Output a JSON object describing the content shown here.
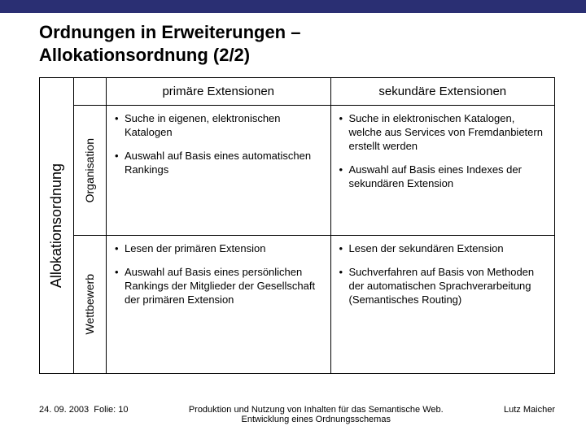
{
  "colors": {
    "accent_bar": "#2a2f73",
    "border": "#000000",
    "background": "#ffffff",
    "text": "#000000"
  },
  "title_line1": "Ordnungen in Erweiterungen –",
  "title_line2": "Allokationsordnung (2/2)",
  "outer_row_label": "Allokationsordnung",
  "col_headers": {
    "primary": "primäre Extensionen",
    "secondary": "sekundäre Extensionen"
  },
  "row_labels": {
    "r1": "Organisation",
    "r2": "Wettbewerb"
  },
  "cells": {
    "r1p": {
      "b1": "Suche in eigenen, elektronischen Katalogen",
      "b2": "Auswahl auf Basis eines automatischen Rankings"
    },
    "r1s": {
      "b1": "Suche in elektronischen Katalogen, welche aus Services von Fremdanbietern erstellt werden",
      "b2": "Auswahl auf Basis eines Indexes der sekundären Extension"
    },
    "r2p": {
      "b1": "Lesen der primären Extension",
      "b2": "Auswahl auf Basis eines persönlichen Rankings der Mitglieder der Gesellschaft der primären Extension"
    },
    "r2s": {
      "b1": "Lesen der sekundären Extension",
      "b2": "Suchverfahren auf Basis von Methoden der automatischen Sprachverarbeitung (Semantisches Routing)"
    }
  },
  "footer": {
    "date": "24. 09. 2003",
    "folie_label": "Folie: 10",
    "center_l1": "Produktion und Nutzung von Inhalten für das Semantische Web.",
    "center_l2": "Entwicklung eines Ordnungsschemas",
    "author": "Lutz Maicher"
  }
}
